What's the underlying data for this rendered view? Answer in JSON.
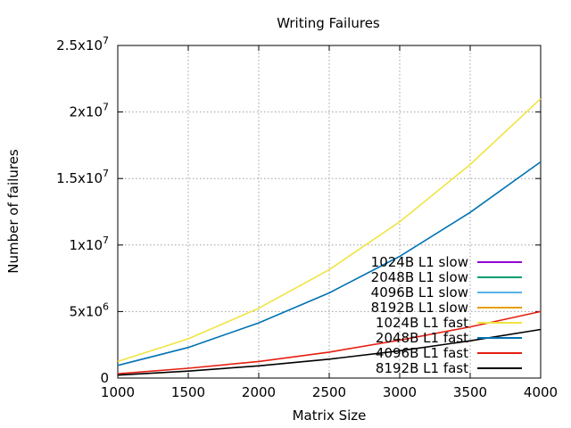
{
  "chart_data": {
    "type": "line",
    "title": "Writing Failures",
    "xlabel": "Matrix Size",
    "ylabel": "Number of failures",
    "xlim": [
      1000,
      4000
    ],
    "ylim": [
      0,
      25000000
    ],
    "grid": true,
    "legend_position": "bottom-right",
    "x_ticks": [
      1000,
      1500,
      2000,
      2500,
      3000,
      3500,
      4000
    ],
    "x_tick_labels": [
      "1000",
      "1500",
      "2000",
      "2500",
      "3000",
      "3500",
      "4000"
    ],
    "y_ticks": [
      0,
      5000000,
      10000000,
      15000000,
      20000000,
      25000000
    ],
    "y_tick_labels": [
      {
        "base": "0",
        "exp": ""
      },
      {
        "base": "5x10",
        "exp": "6"
      },
      {
        "base": "1x10",
        "exp": "7"
      },
      {
        "base": "1.5x10",
        "exp": "7"
      },
      {
        "base": "2x10",
        "exp": "7"
      },
      {
        "base": "2.5x10",
        "exp": "7"
      }
    ],
    "x": [
      1000,
      1500,
      2000,
      2500,
      3000,
      3500,
      4000
    ],
    "series": [
      {
        "name": "1024B L1 slow",
        "color": "#9400d3",
        "values": [
          null,
          null,
          null,
          null,
          null,
          null,
          null
        ]
      },
      {
        "name": "2048B L1 slow",
        "color": "#009e73",
        "values": [
          null,
          null,
          null,
          null,
          null,
          null,
          null
        ]
      },
      {
        "name": "4096B L1 slow",
        "color": "#56b4e9",
        "values": [
          null,
          null,
          null,
          null,
          null,
          null,
          null
        ]
      },
      {
        "name": "8192B L1 slow",
        "color": "#e69f00",
        "values": [
          null,
          null,
          null,
          null,
          null,
          null,
          null
        ]
      },
      {
        "name": "1024B L1 fast",
        "color": "#f0e442",
        "values": [
          1250000,
          2950000,
          5250000,
          8150000,
          11750000,
          16050000,
          21000000
        ]
      },
      {
        "name": "2048B L1 fast",
        "color": "#0072b2",
        "values": [
          950000,
          2300000,
          4150000,
          6400000,
          9150000,
          12450000,
          16250000
        ]
      },
      {
        "name": "4096B L1 fast",
        "color": "#e51e10",
        "values": [
          320000,
          740000,
          1250000,
          1950000,
          2850000,
          3850000,
          5000000
        ]
      },
      {
        "name": "8192B L1 fast",
        "color": "#000000",
        "values": [
          220000,
          520000,
          920000,
          1420000,
          2050000,
          2800000,
          3650000
        ]
      }
    ]
  }
}
